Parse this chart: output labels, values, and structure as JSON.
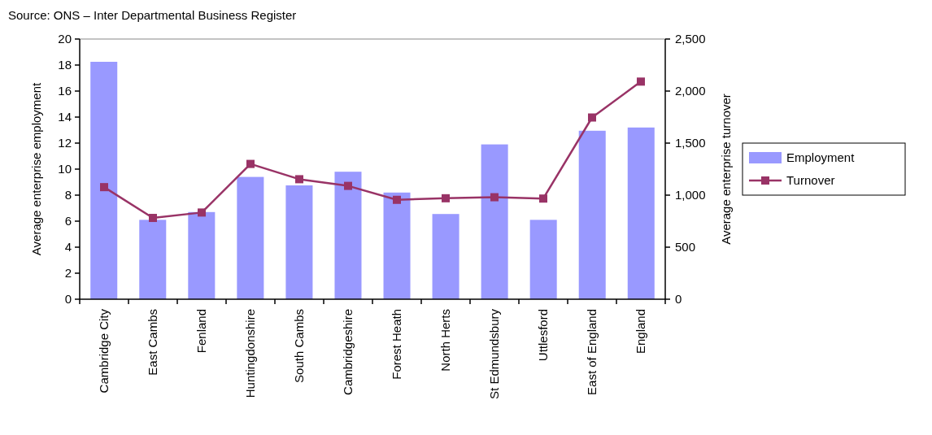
{
  "chart_data": {
    "type": "bar",
    "annotations": [
      "Source: ONS – Inter Departmental Business Register"
    ],
    "ylabel": "Average enterprise employment",
    "y2label": "Average enterprise turnover",
    "categories": [
      "Cambridge City",
      "East Cambs",
      "Fenland",
      "Huntingdonshire",
      "South Cambs",
      "Cambridgeshire",
      "Forest Heath",
      "North Herts",
      "St Edmundsbury",
      "Uttlesford",
      "East of England",
      "England"
    ],
    "series": [
      {
        "name": "Employment",
        "color": "#9999ff",
        "values": [
          18.25,
          6.1,
          6.7,
          9.4,
          8.75,
          9.8,
          8.2,
          6.55,
          11.9,
          6.1,
          12.95,
          13.2
        ]
      },
      {
        "name": "Turnover",
        "type": "line",
        "axis": "y2",
        "color": "#993366",
        "marker": "square",
        "values": [
          1077,
          781,
          833,
          1300,
          1153,
          1089,
          955,
          970,
          980,
          967,
          1746,
          2091
        ]
      }
    ],
    "ylim": [
      0,
      20
    ],
    "yticks": [
      0,
      2,
      4,
      6,
      8,
      10,
      12,
      14,
      16,
      18,
      20
    ],
    "y2lim": [
      0,
      2500
    ],
    "y2ticks": [
      {
        "value": 0,
        "label": "0"
      },
      {
        "value": 500,
        "label": "500"
      },
      {
        "value": 1000,
        "label": "1,000"
      },
      {
        "value": 1500,
        "label": "1,500"
      },
      {
        "value": 2000,
        "label": "2,000"
      },
      {
        "value": 2500,
        "label": "2,500"
      }
    ],
    "grid": false,
    "legend": "right"
  }
}
